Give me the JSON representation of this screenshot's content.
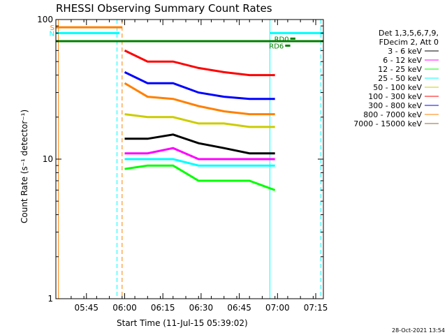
{
  "chart_data": {
    "type": "line",
    "title": "RHESSI Observing Summary Count Rates",
    "xlabel": "Start Time (11-Jul-15 05:39:02)",
    "ylabel": "Count Rate (s⁻¹ detector⁻¹)",
    "y_scale": "log",
    "ylim": [
      1,
      100
    ],
    "y_ticks": [
      {
        "value": 1,
        "label": "1"
      },
      {
        "value": 10,
        "label": "10"
      },
      {
        "value": 100,
        "label": "100"
      }
    ],
    "x_range_min": [
      -6,
      99
    ],
    "x_ticks": [
      {
        "value": 6,
        "label": "05:45"
      },
      {
        "value": 21,
        "label": "06:00"
      },
      {
        "value": 36,
        "label": "06:15"
      },
      {
        "value": 51,
        "label": "06:30"
      },
      {
        "value": 66,
        "label": "06:45"
      },
      {
        "value": 81,
        "label": "07:00"
      },
      {
        "value": 96,
        "label": "07:15"
      }
    ],
    "legend": {
      "position": "right",
      "header": [
        "Det 1,3,5,6,7,9,",
        "FDecim 2, Att 0"
      ]
    },
    "series": [
      {
        "name": "3 - 6 keV",
        "color": "#000000",
        "x": [
          21,
          30,
          40,
          50,
          60,
          70,
          80
        ],
        "y": [
          14,
          14,
          15,
          13,
          12,
          11,
          11
        ]
      },
      {
        "name": "6 - 12 keV",
        "color": "#ff00ff",
        "x": [
          21,
          30,
          40,
          50,
          60,
          70,
          80
        ],
        "y": [
          11,
          11,
          12,
          10,
          10,
          10,
          10
        ]
      },
      {
        "name": "12 - 25 keV",
        "color": "#00ff00",
        "x": [
          21,
          30,
          40,
          50,
          60,
          70,
          80
        ],
        "y": [
          8.5,
          9,
          9,
          7,
          7,
          7,
          6
        ]
      },
      {
        "name": "25 - 50 keV",
        "color": "#00ffff",
        "x": [
          21,
          30,
          40,
          50,
          60,
          70,
          80
        ],
        "y": [
          10,
          10,
          10,
          9,
          9,
          9,
          9
        ]
      },
      {
        "name": "50 - 100 keV",
        "color": "#cccc00",
        "x": [
          21,
          30,
          40,
          50,
          60,
          70,
          80
        ],
        "y": [
          21,
          20,
          20,
          18,
          18,
          17,
          17
        ]
      },
      {
        "name": "100 - 300 keV",
        "color": "#ff0000",
        "x": [
          21,
          30,
          40,
          50,
          60,
          70,
          80
        ],
        "y": [
          60,
          50,
          50,
          45,
          42,
          40,
          40
        ]
      },
      {
        "name": "300 - 800 keV",
        "color": "#0000ff",
        "x": [
          21,
          30,
          40,
          50,
          60,
          70,
          80
        ],
        "y": [
          42,
          35,
          35,
          30,
          28,
          27,
          27
        ]
      },
      {
        "name": "800 - 7000 keV",
        "color": "#ff8000",
        "x": [
          21,
          30,
          40,
          50,
          60,
          70,
          80
        ],
        "y": [
          35,
          28,
          27,
          24,
          22,
          21,
          21
        ]
      },
      {
        "name": "7000 - 15000 keV",
        "color": "#996633",
        "x": [],
        "y": []
      }
    ],
    "attenuator_states": [
      {
        "label": "S",
        "color": "#ff8000",
        "x_start": -6,
        "x_end": 20,
        "y": 88
      },
      {
        "label": "N",
        "color": "#00ffff",
        "x_start": -6,
        "x_end": 19,
        "y": 80
      },
      {
        "label": "",
        "color": "#00ffff",
        "x_start": 78,
        "x_end": 99,
        "y": 80
      }
    ],
    "flag_bars": [
      {
        "label": "",
        "color": "#008000",
        "x_start": -6,
        "x_end": 99,
        "y": 70
      },
      {
        "label": "RD6",
        "color": "#008000",
        "x_start": 84,
        "x_end": 86,
        "y": 65
      },
      {
        "label": "RD0",
        "color": "#008000",
        "x_start": 86,
        "x_end": 88,
        "y": 73
      }
    ],
    "vertical_lines": [
      {
        "x": -5,
        "color": "#ff8000",
        "style": "solid"
      },
      {
        "x": 18,
        "color": "#00ffff",
        "style": "dashed"
      },
      {
        "x": 20,
        "color": "#ff8000",
        "style": "dashed"
      },
      {
        "x": 78,
        "color": "#00ffff",
        "style": "solid"
      },
      {
        "x": 98,
        "color": "#00ffff",
        "style": "dashed"
      }
    ]
  },
  "footer_date": "28-Oct-2021 13:54"
}
